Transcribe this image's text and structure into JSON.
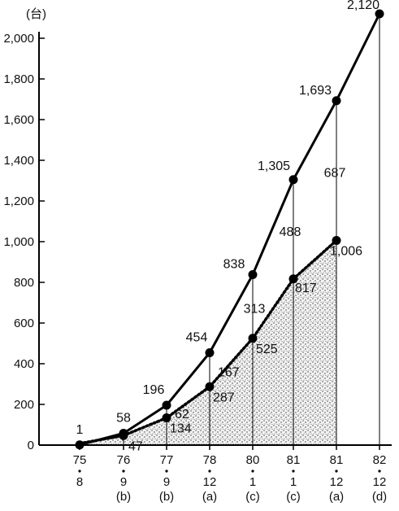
{
  "chart_data": {
    "type": "line",
    "unit_label": "(台)",
    "ylim": [
      0,
      2100
    ],
    "yticks": [
      "0",
      "200",
      "400",
      "600",
      "800",
      "1,000",
      "1,200",
      "1,400",
      "1,600",
      "1,800",
      "2,000"
    ],
    "ytick_values": [
      0,
      200,
      400,
      600,
      800,
      1000,
      1200,
      1400,
      1600,
      1800,
      2000
    ],
    "x": [
      {
        "year": "75",
        "month": "8",
        "note": ""
      },
      {
        "year": "76",
        "month": "9",
        "note": "(b)"
      },
      {
        "year": "77",
        "month": "9",
        "note": "(b)"
      },
      {
        "year": "78",
        "month": "12",
        "note": "(a)"
      },
      {
        "year": "80",
        "month": "1",
        "note": "(c)"
      },
      {
        "year": "81",
        "month": "1",
        "note": "(c)"
      },
      {
        "year": "81",
        "month": "12",
        "note": "(a)"
      },
      {
        "year": "82",
        "month": "12",
        "note": "(d)"
      }
    ],
    "series": [
      {
        "style": "solid",
        "values": [
          1,
          58,
          196,
          454,
          838,
          1305,
          1693,
          2120
        ],
        "labels": [
          "1",
          "58",
          "196",
          "454",
          "838",
          "1,305",
          "1,693",
          "2,120"
        ]
      },
      {
        "style": "dotted",
        "values": [
          null,
          47,
          134,
          287,
          525,
          817,
          1006,
          null
        ],
        "labels": [
          "",
          "47",
          "134",
          "287",
          "525",
          "817",
          "1,006",
          ""
        ]
      }
    ],
    "difference_labels": [
      "",
      "",
      "62",
      "167",
      "313",
      "488",
      "687",
      ""
    ],
    "grid": false,
    "shaded_area_under": "dotted"
  }
}
